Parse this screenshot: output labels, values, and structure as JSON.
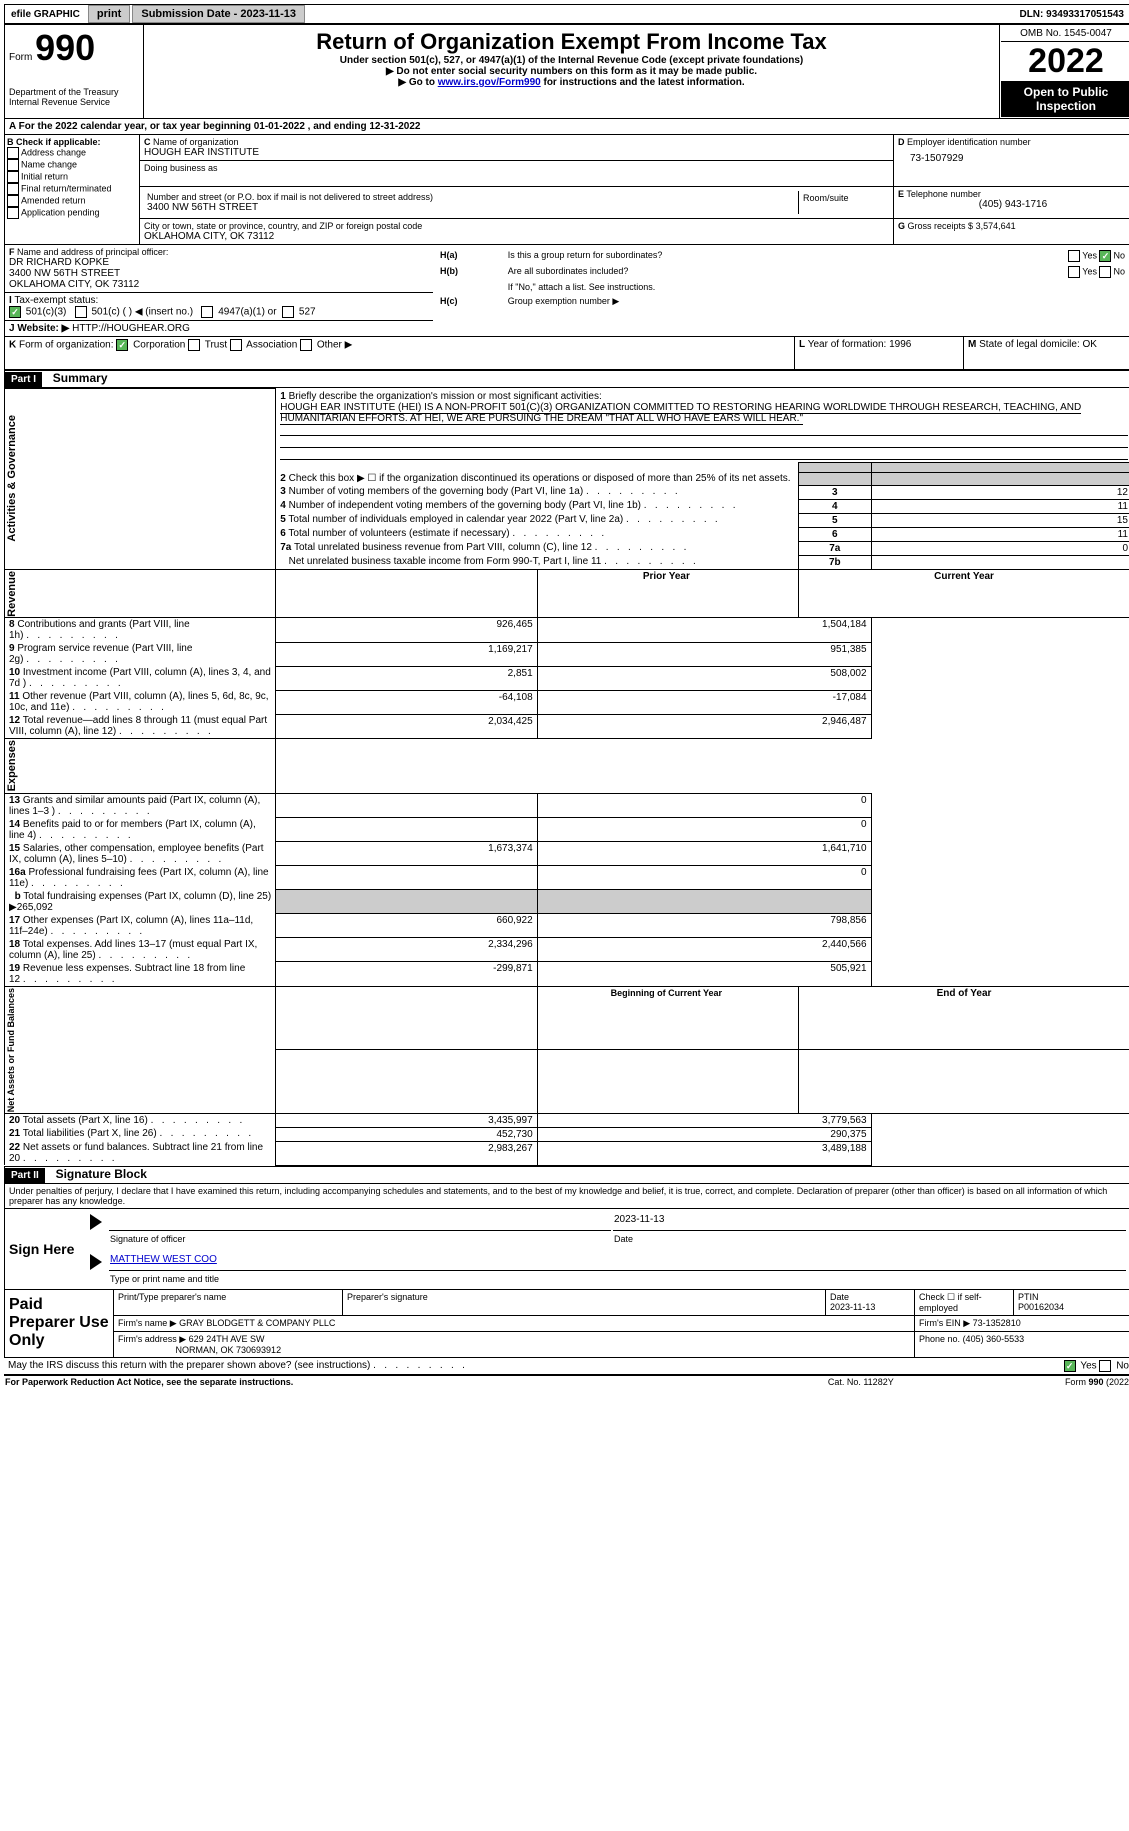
{
  "topbar": {
    "efile": "efile GRAPHIC",
    "print": "print",
    "sub_date_label": "Submission Date - 2023-11-13",
    "dln": "DLN: 93493317051543"
  },
  "header": {
    "form_word": "Form",
    "form_num": "990",
    "title": "Return of Organization Exempt From Income Tax",
    "sub1": "Under section 501(c), 527, or 4947(a)(1) of the Internal Revenue Code (except private foundations)",
    "sub2": "▶ Do not enter social security numbers on this form as it may be made public.",
    "sub3_pre": "▶ Go to ",
    "sub3_link": "www.irs.gov/Form990",
    "sub3_post": " for instructions and the latest information.",
    "dept": "Department of the Treasury",
    "irs": "Internal Revenue Service",
    "omb": "OMB No. 1545-0047",
    "year": "2022",
    "open": "Open to Public Inspection"
  },
  "A": {
    "text": "For the 2022 calendar year, or tax year beginning 01-01-2022   , and ending 12-31-2022"
  },
  "B": {
    "label": "Check if applicable:",
    "opts": [
      "Address change",
      "Name change",
      "Initial return",
      "Final return/terminated",
      "Amended return",
      "Application pending"
    ]
  },
  "C": {
    "name_label": "Name of organization",
    "name": "HOUGH EAR INSTITUTE",
    "dba_label": "Doing business as",
    "street_label": "Number and street (or P.O. box if mail is not delivered to street address)",
    "room_label": "Room/suite",
    "street": "3400 NW 56TH STREET",
    "city_label": "City or town, state or province, country, and ZIP or foreign postal code",
    "city": "OKLAHOMA CITY, OK  73112"
  },
  "D": {
    "label": "Employer identification number",
    "value": "73-1507929"
  },
  "E": {
    "label": "Telephone number",
    "value": "(405) 943-1716"
  },
  "G": {
    "label": "Gross receipts $",
    "value": "3,574,641"
  },
  "F": {
    "label": "Name and address of principal officer:",
    "name": "DR RICHARD KOPKE",
    "street": "3400 NW 56TH STREET",
    "city": "OKLAHOMA CITY, OK  73112"
  },
  "H": {
    "a": "Is this a group return for subordinates?",
    "b": "Are all subordinates included?",
    "bnote": "If \"No,\" attach a list. See instructions.",
    "c": "Group exemption number ▶",
    "yes": "Yes",
    "no": "No"
  },
  "I": {
    "label": "Tax-exempt status:",
    "o1": "501(c)(3)",
    "o2": "501(c) (  ) ◀ (insert no.)",
    "o3": "4947(a)(1) or",
    "o4": "527"
  },
  "J": {
    "label": "Website: ▶",
    "value": "HTTP://HOUGHEAR.ORG"
  },
  "K": {
    "label": "Form of organization:",
    "opts": [
      "Corporation",
      "Trust",
      "Association",
      "Other ▶"
    ]
  },
  "L": {
    "label": "Year of formation:",
    "value": "1996"
  },
  "M": {
    "label": "State of legal domicile:",
    "value": "OK"
  },
  "part1": {
    "label": "Part I",
    "title": "Summary"
  },
  "summary": {
    "l1_label": "Briefly describe the organization's mission or most significant activities:",
    "l1_text": "HOUGH EAR INSTITUTE (HEI) IS A NON-PROFIT 501(C)(3) ORGANIZATION COMMITTED TO RESTORING HEARING WORLDWIDE THROUGH RESEARCH, TEACHING, AND HUMANITARIAN EFFORTS. AT HEI, WE ARE PURSUING THE DREAM \"THAT ALL WHO HAVE EARS WILL HEAR.\"",
    "l2": "Check this box ▶ ☐ if the organization discontinued its operations or disposed of more than 25% of its net assets.",
    "l3": "Number of voting members of the governing body (Part VI, line 1a)",
    "l4": "Number of independent voting members of the governing body (Part VI, line 1b)",
    "l5": "Total number of individuals employed in calendar year 2022 (Part V, line 2a)",
    "l6": "Total number of volunteers (estimate if necessary)",
    "l7a": "Total unrelated business revenue from Part VIII, column (C), line 12",
    "l7b": "Net unrelated business taxable income from Form 990-T, Part I, line 11",
    "v3": "12",
    "v4": "11",
    "v5": "15",
    "v6": "11",
    "v7a": "0",
    "v7b": "",
    "side_ag": "Activities & Governance",
    "side_rev": "Revenue",
    "side_exp": "Expenses",
    "side_net": "Net Assets or Fund Balances",
    "h_prior": "Prior Year",
    "h_curr": "Current Year",
    "rows_rev": [
      {
        "n": "8",
        "t": "Contributions and grants (Part VIII, line 1h)",
        "p": "926,465",
        "c": "1,504,184"
      },
      {
        "n": "9",
        "t": "Program service revenue (Part VIII, line 2g)",
        "p": "1,169,217",
        "c": "951,385"
      },
      {
        "n": "10",
        "t": "Investment income (Part VIII, column (A), lines 3, 4, and 7d )",
        "p": "2,851",
        "c": "508,002"
      },
      {
        "n": "11",
        "t": "Other revenue (Part VIII, column (A), lines 5, 6d, 8c, 9c, 10c, and 11e)",
        "p": "-64,108",
        "c": "-17,084"
      },
      {
        "n": "12",
        "t": "Total revenue—add lines 8 through 11 (must equal Part VIII, column (A), line 12)",
        "p": "2,034,425",
        "c": "2,946,487"
      }
    ],
    "rows_exp": [
      {
        "n": "13",
        "t": "Grants and similar amounts paid (Part IX, column (A), lines 1–3 )",
        "p": "",
        "c": "0"
      },
      {
        "n": "14",
        "t": "Benefits paid to or for members (Part IX, column (A), line 4)",
        "p": "",
        "c": "0"
      },
      {
        "n": "15",
        "t": "Salaries, other compensation, employee benefits (Part IX, column (A), lines 5–10)",
        "p": "1,673,374",
        "c": "1,641,710"
      },
      {
        "n": "16a",
        "t": "Professional fundraising fees (Part IX, column (A), line 11e)",
        "p": "",
        "c": "0"
      }
    ],
    "l16b": "Total fundraising expenses (Part IX, column (D), line 25) ▶265,092",
    "rows_exp2": [
      {
        "n": "17",
        "t": "Other expenses (Part IX, column (A), lines 11a–11d, 11f–24e)",
        "p": "660,922",
        "c": "798,856"
      },
      {
        "n": "18",
        "t": "Total expenses. Add lines 13–17 (must equal Part IX, column (A), line 25)",
        "p": "2,334,296",
        "c": "2,440,566"
      },
      {
        "n": "19",
        "t": "Revenue less expenses. Subtract line 18 from line 12",
        "p": "-299,871",
        "c": "505,921"
      }
    ],
    "h_beg": "Beginning of Current Year",
    "h_end": "End of Year",
    "rows_net": [
      {
        "n": "20",
        "t": "Total assets (Part X, line 16)",
        "p": "3,435,997",
        "c": "3,779,563"
      },
      {
        "n": "21",
        "t": "Total liabilities (Part X, line 26)",
        "p": "452,730",
        "c": "290,375"
      },
      {
        "n": "22",
        "t": "Net assets or fund balances. Subtract line 21 from line 20",
        "p": "2,983,267",
        "c": "3,489,188"
      }
    ]
  },
  "part2": {
    "label": "Part II",
    "title": "Signature Block"
  },
  "sig": {
    "decl": "Under penalties of perjury, I declare that I have examined this return, including accompanying schedules and statements, and to the best of my knowledge and belief, it is true, correct, and complete. Declaration of preparer (other than officer) is based on all information of which preparer has any knowledge.",
    "sign_here": "Sign Here",
    "sig_officer": "Signature of officer",
    "date_label": "Date",
    "sig_date": "2023-11-13",
    "name": "MATTHEW WEST COO",
    "name_label": "Type or print name and title",
    "paid": "Paid Preparer Use Only",
    "prep_name_label": "Print/Type preparer's name",
    "prep_sig_label": "Preparer's signature",
    "check_self": "Check ☐ if self-employed",
    "ptin_label": "PTIN",
    "ptin": "P00162034",
    "firm_name_label": "Firm's name   ▶",
    "firm_name": "GRAY BLODGETT & COMPANY PLLC",
    "firm_ein_label": "Firm's EIN ▶",
    "firm_ein": "73-1352810",
    "firm_addr_label": "Firm's address ▶",
    "firm_addr1": "629 24TH AVE SW",
    "firm_addr2": "NORMAN, OK  730693912",
    "phone_label": "Phone no.",
    "phone": "(405) 360-5533",
    "discuss": "May the IRS discuss this return with the preparer shown above? (see instructions)",
    "date2": "2023-11-13"
  },
  "footer": {
    "pra": "For Paperwork Reduction Act Notice, see the separate instructions.",
    "cat": "Cat. No. 11282Y",
    "form": "Form 990 (2022)"
  }
}
